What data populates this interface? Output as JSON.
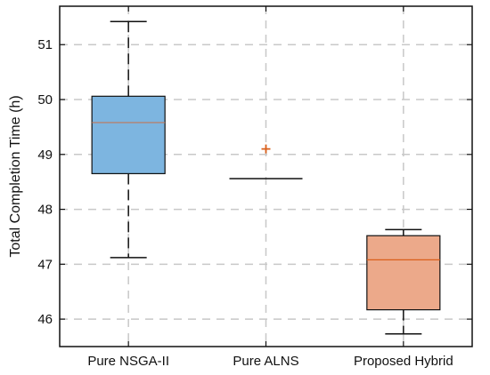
{
  "chart_data": {
    "type": "box",
    "title": "",
    "xlabel": "",
    "ylabel": "Total Completion Time (h)",
    "ylim": [
      45.5,
      51.7
    ],
    "yticks": [
      46,
      47,
      48,
      49,
      50,
      51
    ],
    "grid": true,
    "categories": [
      "Pure NSGA-II",
      "Pure ALNS",
      "Proposed Hybrid"
    ],
    "boxes": [
      {
        "category": "Pure NSGA-II",
        "whisker_low": 47.12,
        "q1": 48.65,
        "median": 49.58,
        "q3": 50.06,
        "whisker_high": 51.42,
        "outliers": [],
        "fill": "#7db5e0",
        "median_color": "#c0785a"
      },
      {
        "category": "Pure ALNS",
        "whisker_low": 48.56,
        "q1": 48.56,
        "median": 48.56,
        "q3": 48.56,
        "whisker_high": 48.56,
        "outliers": [
          49.1
        ],
        "fill": "#7db5e0",
        "median_color": "#111111"
      },
      {
        "category": "Proposed Hybrid",
        "whisker_low": 45.73,
        "q1": 46.17,
        "median": 47.08,
        "q3": 47.52,
        "whisker_high": 47.63,
        "outliers": [],
        "fill": "#eca98a",
        "median_color": "#d95f1a"
      }
    ],
    "colors": {
      "outlier": "#d95f1a",
      "grid": "#c8c8c8",
      "axis": "#111111",
      "whisker": "#111111"
    }
  }
}
